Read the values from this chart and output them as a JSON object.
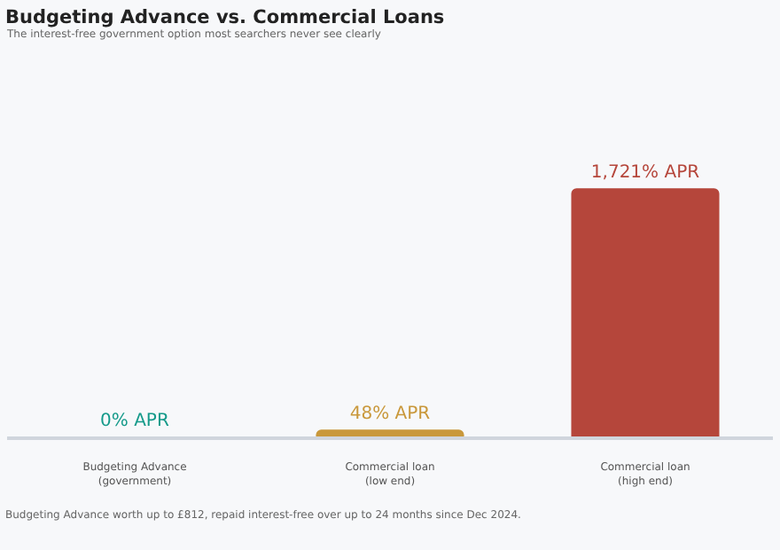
{
  "chart_data": {
    "type": "bar",
    "title": "Budgeting Advance vs. Commercial Loans",
    "subtitle": "The interest-free government option most searchers never see clearly",
    "categories": [
      "Budgeting Advance\n(government)",
      "Commercial loan\n(low end)",
      "Commercial loan\n(high end)"
    ],
    "values": [
      0,
      48,
      1721
    ],
    "value_labels": [
      "0% APR",
      "48% APR",
      "1,721% APR"
    ],
    "colors": [
      "#159a8a",
      "#c9983b",
      "#b5463b"
    ],
    "annotations": [
      "Budgeting Advance worth up to £812, repaid interest-free over up to 24 months since Dec 2024."
    ],
    "grid": false,
    "legend": false
  }
}
